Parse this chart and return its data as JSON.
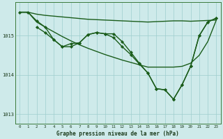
{
  "title": "Graphe pression niveau de la mer (hPa)",
  "background_color": "#ceeaea",
  "grid_color": "#9ecece",
  "line_color": "#1a5c1a",
  "xlim": [
    -0.5,
    23.5
  ],
  "ylim": [
    1012.75,
    1015.85
  ],
  "yticks": [
    1013,
    1014,
    1015
  ],
  "xticks": [
    0,
    1,
    2,
    3,
    4,
    5,
    6,
    7,
    8,
    9,
    10,
    11,
    12,
    13,
    14,
    15,
    16,
    17,
    18,
    19,
    20,
    21,
    22,
    23
  ],
  "series": [
    {
      "x": [
        0,
        1,
        2,
        3,
        4,
        5,
        6,
        7,
        8,
        9,
        10,
        11,
        12,
        13,
        14,
        15,
        16,
        17,
        18,
        19,
        20,
        21,
        22,
        23
      ],
      "y": [
        1015.6,
        1015.6,
        1015.55,
        1015.52,
        1015.5,
        1015.48,
        1015.46,
        1015.44,
        1015.42,
        1015.41,
        1015.4,
        1015.39,
        1015.38,
        1015.37,
        1015.36,
        1015.35,
        1015.36,
        1015.37,
        1015.38,
        1015.38,
        1015.37,
        1015.38,
        1015.39,
        1015.4
      ],
      "marker": false,
      "linewidth": 1.0
    },
    {
      "x": [
        0,
        1,
        2,
        3,
        4,
        5,
        6,
        7,
        8,
        9,
        10,
        11,
        12,
        13,
        14,
        15,
        16,
        17,
        18,
        19,
        20,
        21,
        22,
        23
      ],
      "y": [
        1015.6,
        1015.6,
        1015.35,
        1015.22,
        1015.1,
        1014.98,
        1014.87,
        1014.77,
        1014.68,
        1014.6,
        1014.52,
        1014.45,
        1014.38,
        1014.32,
        1014.26,
        1014.2,
        1014.2,
        1014.2,
        1014.2,
        1014.22,
        1014.3,
        1014.5,
        1014.85,
        1015.4
      ],
      "marker": false,
      "linewidth": 1.0
    },
    {
      "x": [
        0,
        1,
        2,
        3,
        4,
        5,
        6,
        7,
        8,
        9,
        10,
        11,
        12,
        13,
        14,
        15,
        16,
        17,
        18,
        19,
        20,
        21,
        22,
        23
      ],
      "y": [
        1015.6,
        1015.6,
        1015.38,
        1015.22,
        1014.9,
        1014.72,
        1014.72,
        1014.82,
        1015.03,
        1015.08,
        1015.05,
        1015.05,
        1014.85,
        1014.58,
        1014.3,
        1014.05,
        1013.65,
        1013.62,
        1013.38,
        1013.75,
        1014.22,
        1015.0,
        1015.35,
        1015.45
      ],
      "marker": true,
      "linewidth": 1.0,
      "markersize": 2.2
    },
    {
      "x": [
        2,
        3,
        4,
        5,
        6,
        7,
        8,
        9,
        10,
        11,
        12,
        13,
        14,
        15,
        16,
        17,
        18,
        19,
        20,
        21,
        22,
        23
      ],
      "y": [
        1015.22,
        1015.08,
        1014.9,
        1014.72,
        1014.8,
        1014.82,
        1015.03,
        1015.08,
        1015.05,
        1014.95,
        1014.72,
        1014.52,
        1014.28,
        1014.05,
        1013.65,
        1013.62,
        1013.38,
        1013.75,
        1014.22,
        1015.0,
        1015.35,
        1015.45
      ],
      "marker": true,
      "linewidth": 1.0,
      "markersize": 2.2
    }
  ]
}
